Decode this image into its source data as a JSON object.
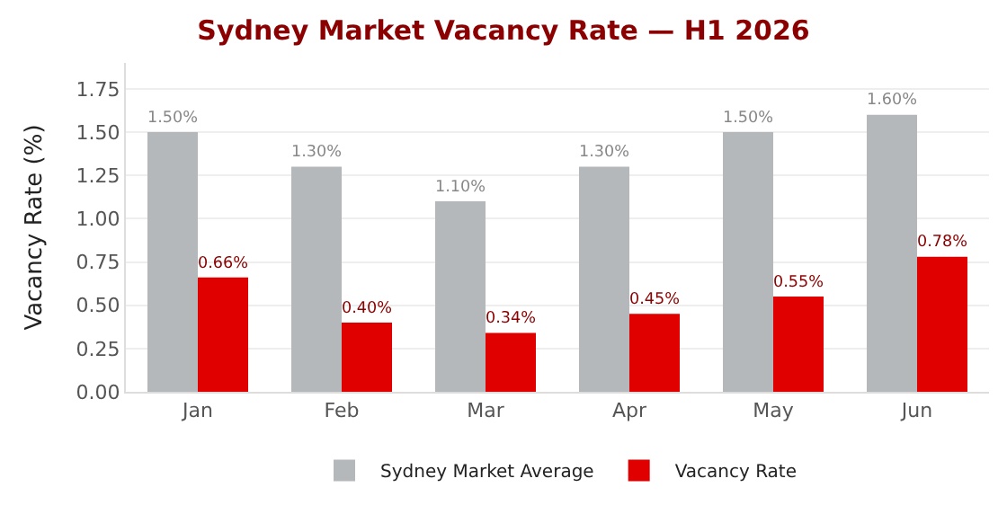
{
  "chart_data": {
    "type": "bar",
    "title": "Sydney Market Vacancy Rate — H1 2026",
    "ylabel": "Vacancy Rate (%)",
    "categories": [
      "Jan",
      "Feb",
      "Mar",
      "Apr",
      "May",
      "Jun"
    ],
    "series": [
      {
        "name": "Sydney Market Average",
        "color": "#b5b8ba",
        "values": [
          1.5,
          1.3,
          1.1,
          1.3,
          1.5,
          1.6
        ],
        "value_labels": [
          "1.50%",
          "1.30%",
          "1.10%",
          "1.30%",
          "1.50%",
          "1.60%"
        ]
      },
      {
        "name": "Vacancy Rate",
        "color": "#e00000",
        "values": [
          0.66,
          0.4,
          0.34,
          0.45,
          0.55,
          0.78
        ],
        "value_labels": [
          "0.66%",
          "0.40%",
          "0.34%",
          "0.45%",
          "0.55%",
          "0.78%"
        ]
      }
    ],
    "ylim": [
      0,
      1.9
    ],
    "yticks": [
      {
        "value": 0,
        "label": "0.00"
      },
      {
        "value": 0.25,
        "label": "0.25"
      },
      {
        "value": 0.5,
        "label": "0.50"
      },
      {
        "value": 0.75,
        "label": "0.75"
      },
      {
        "value": 1,
        "label": "1.00"
      },
      {
        "value": 1.25,
        "label": "1.25"
      },
      {
        "value": 1.5,
        "label": "1.50"
      },
      {
        "value": 1.75,
        "label": "1.75"
      }
    ],
    "grid": "y",
    "legend": "bottom"
  }
}
